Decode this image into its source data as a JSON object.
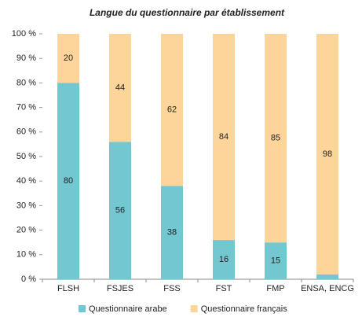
{
  "chart_data": {
    "type": "stacked_bar",
    "title": "Langue du questionnaire par établissement",
    "categories": [
      "FLSH",
      "FSJES",
      "FSS",
      "FST",
      "FMP",
      "ENSA, ENCG"
    ],
    "series": [
      {
        "name": "Questionnaire arabe",
        "color": "#72c7d1",
        "values": [
          80,
          56,
          38,
          16,
          15,
          2
        ]
      },
      {
        "name": "Questionnaire français",
        "color": "#fdd59a",
        "values": [
          20,
          44,
          62,
          84,
          85,
          98
        ]
      }
    ],
    "ylim": [
      0,
      100
    ],
    "yticks": [
      {
        "value": 0,
        "label": "0 %"
      },
      {
        "value": 10,
        "label": "10 %"
      },
      {
        "value": 20,
        "label": "20 %"
      },
      {
        "value": 30,
        "label": "30 %"
      },
      {
        "value": 40,
        "label": "40 %"
      },
      {
        "value": 50,
        "label": "50 %"
      },
      {
        "value": 60,
        "label": "60 %"
      },
      {
        "value": 70,
        "label": "70 %"
      },
      {
        "value": 80,
        "label": "80 %"
      },
      {
        "value": 90,
        "label": "90 %"
      },
      {
        "value": 100,
        "label": "100 %"
      }
    ],
    "grid": false,
    "legend": "bottom"
  }
}
